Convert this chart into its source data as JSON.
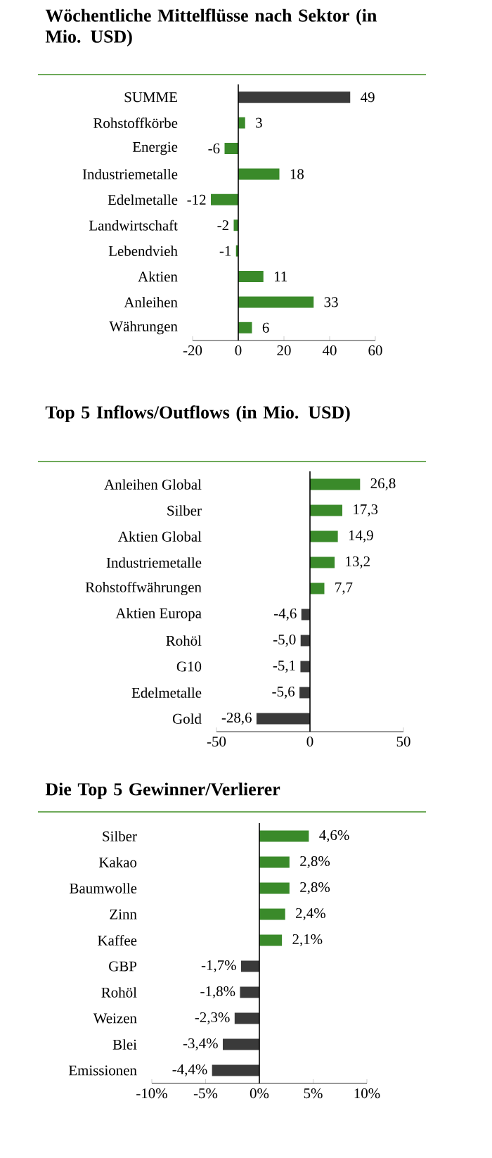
{
  "chart_data": [
    {
      "type": "bar",
      "orientation": "horizontal",
      "title": "Wöchentliche Mittelflüsse nach Sektor (in Mio. USD)",
      "categories": [
        "SUMME",
        "Rohstoffkörbe",
        "Energie",
        "Industriemetalle",
        "Edelmetalle",
        "Landwirtschaft",
        "Lebendvieh",
        "Aktien",
        "Anleihen",
        "Währungen"
      ],
      "values": [
        49,
        3,
        -6,
        18,
        -12,
        -2,
        -1,
        11,
        33,
        6
      ],
      "colors": [
        "#3a3a3a",
        "#3a8a2a",
        "#3a8a2a",
        "#3a8a2a",
        "#3a8a2a",
        "#3a8a2a",
        "#3a8a2a",
        "#3a8a2a",
        "#3a8a2a",
        "#3a8a2a"
      ],
      "xlim": [
        -20,
        60
      ],
      "xticks": [
        -20,
        0,
        20,
        40,
        60
      ],
      "data_labels": true
    },
    {
      "type": "bar",
      "orientation": "horizontal",
      "title": "Top 5 Inflows/Outflows (in Mio. USD)",
      "categories": [
        "Anleihen Global",
        "Silber",
        "Aktien Global",
        "Industriemetalle",
        "Rohstoffwährungen",
        "Aktien Europa",
        "Rohöl",
        "G10",
        "Edelmetalle",
        "Gold"
      ],
      "values": [
        26.8,
        17.3,
        14.9,
        13.2,
        7.7,
        -4.6,
        -5.0,
        -5.1,
        -5.6,
        -28.6
      ],
      "value_labels": [
        "26,8",
        "17,3",
        "14,9",
        "13,2",
        "7,7",
        "-4,6",
        "-5,0",
        "-5,1",
        "-5,6",
        "-28,6"
      ],
      "colors": [
        "#3a8a2a",
        "#3a8a2a",
        "#3a8a2a",
        "#3a8a2a",
        "#3a8a2a",
        "#3a3a3a",
        "#3a3a3a",
        "#3a3a3a",
        "#3a3a3a",
        "#3a3a3a"
      ],
      "xlim": [
        -50,
        50
      ],
      "xticks": [
        -50,
        0,
        50
      ]
    },
    {
      "type": "bar",
      "orientation": "horizontal",
      "title": "Die Top 5 Gewinner/Verlierer",
      "categories": [
        "Silber",
        "Kakao",
        "Baumwolle",
        "Zinn",
        "Kaffee",
        "GBP",
        "Rohöl",
        "Weizen",
        "Blei",
        "Emissionen"
      ],
      "values": [
        4.6,
        2.8,
        2.8,
        2.4,
        2.1,
        -1.7,
        -1.8,
        -2.3,
        -3.4,
        -4.4
      ],
      "value_labels": [
        "4,6%",
        "2,8%",
        "2,8%",
        "2,4%",
        "2,1%",
        "-1,7%",
        "-1,8%",
        "-2,3%",
        "-3,4%",
        "-4,4%"
      ],
      "colors": [
        "#3a8a2a",
        "#3a8a2a",
        "#3a8a2a",
        "#3a8a2a",
        "#3a8a2a",
        "#3a3a3a",
        "#3a3a3a",
        "#3a3a3a",
        "#3a3a3a",
        "#3a3a3a"
      ],
      "xlim": [
        -10,
        10
      ],
      "xticks": [
        {
          "value": -10,
          "label": "-10%"
        },
        {
          "value": -5,
          "label": "-5%"
        },
        {
          "value": 0,
          "label": "0%"
        },
        {
          "value": 5,
          "label": "5%"
        },
        {
          "value": 10,
          "label": "10%"
        }
      ]
    }
  ]
}
